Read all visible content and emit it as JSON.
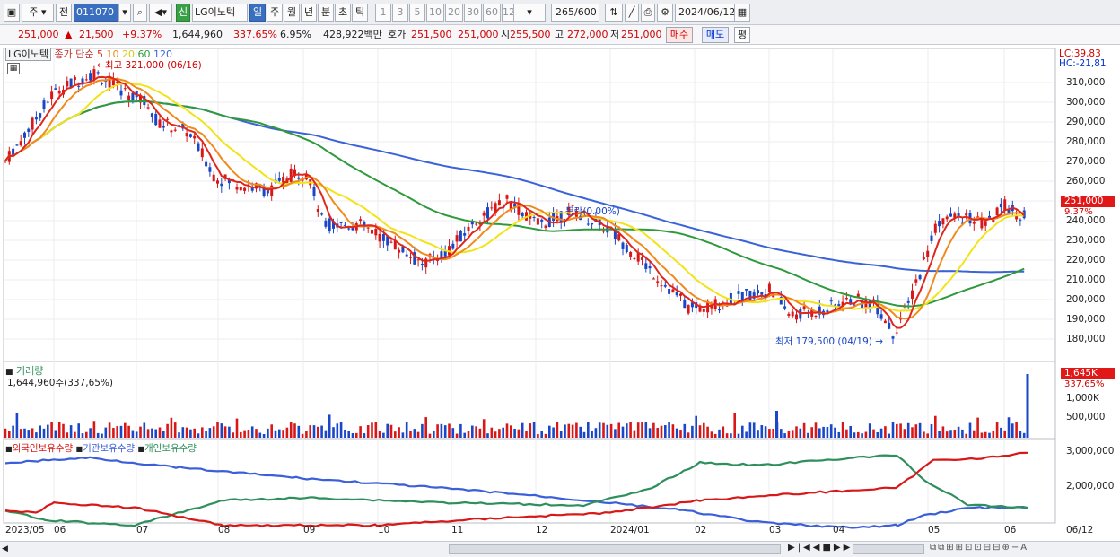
{
  "toolbar": {
    "period_unit": "주",
    "prev_label": "전",
    "stock_code": "011070",
    "new_badge": "신",
    "stock_name": "LG이노텍",
    "period_tabs": [
      "일",
      "주",
      "월",
      "년",
      "분",
      "초",
      "틱"
    ],
    "selected_period": "일",
    "interval_tabs": [
      "1",
      "3",
      "5",
      "10",
      "20",
      "30",
      "60",
      "120"
    ],
    "bar_count": "265",
    "bar_max": "/600",
    "date": "2024/06/12"
  },
  "quote": {
    "price": "251,000",
    "arrow": "▲",
    "change": "21,500",
    "change_pct": "+9.37%",
    "volume": "1,644,960",
    "volume_ratio": "337.65%",
    "turnover": "6.95%",
    "amount": "428,922백만",
    "ask_label": "호가",
    "ask1": "251,500",
    "ask2": "251,000",
    "open_label": "시",
    "open": "255,500",
    "high_label": "고",
    "high": "272,000",
    "low_label": "저",
    "low": "251,000",
    "buy_label": "매수",
    "sell_label": "매도",
    "flat_label": "평"
  },
  "price_panel": {
    "stock_label": "LG이노텍",
    "ma_label": "종가 단순",
    "ma_periods": [
      "5",
      "10",
      "20",
      "60",
      "120"
    ],
    "ma_colors": [
      "#e0261a",
      "#f08a1c",
      "#f2e318",
      "#2f9a3c",
      "#3a63d8"
    ],
    "max_annotation": "최고 321,000 (06/16)",
    "min_annotation": "최저 179,500 (04/19)",
    "mid_annotation": "등락(0.00%)",
    "lc": "LC:39,83",
    "hc": "HC:-21,81",
    "current_price_tag": "251,000",
    "current_pct_tag": "9.37%",
    "y_ticks": [
      "310,000",
      "300,000",
      "290,000",
      "280,000",
      "270,000",
      "260,000",
      "250,000",
      "240,000",
      "230,000",
      "220,000",
      "210,000",
      "200,000",
      "190,000",
      "180,000"
    ]
  },
  "volume_panel": {
    "title": "거래량",
    "value_text": "1,644,960주(337,65%)",
    "tag": "1,645K",
    "tag_pct": "337.65%",
    "y_ticks": [
      "1,000K",
      "500,000"
    ]
  },
  "holdings_panel": {
    "legend": [
      "외국인보유수량",
      "기관보유수량",
      "개인보유수량"
    ],
    "legend_colors": [
      "#d81818",
      "#3a5fd8",
      "#2f8f5c"
    ],
    "y_ticks": [
      "3,000,000",
      "2,000,000"
    ]
  },
  "x_axis": [
    "2023/05",
    "06",
    "07",
    "08",
    "09",
    "10",
    "11",
    "12",
    "2024/01",
    "02",
    "03",
    "04",
    "05",
    "06"
  ],
  "x_axis_right": "06/12",
  "colors": {
    "up": "#d81818",
    "down": "#1a47c8",
    "grid": "#e4e6ea"
  }
}
